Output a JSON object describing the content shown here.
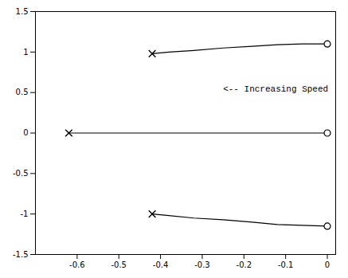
{
  "chart_data": {
    "type": "line",
    "color": "#000000",
    "marker": "x-o",
    "grid": false,
    "xlim": [
      -0.7,
      0.02
    ],
    "ylim": [
      -1.5,
      1.5
    ],
    "xticks": [
      -0.6,
      -0.5,
      -0.4,
      -0.3,
      -0.2,
      -0.1,
      0
    ],
    "yticks": [
      -1.5,
      -1,
      -0.5,
      0,
      0.5,
      1,
      1.5
    ],
    "series": [
      {
        "x": [
          -0.42,
          -0.38,
          -0.32,
          -0.25,
          -0.18,
          -0.12,
          -0.06,
          0.0
        ],
        "values": [
          0.98,
          1.0,
          1.02,
          1.05,
          1.07,
          1.09,
          1.1,
          1.1
        ]
      },
      {
        "x": [
          -0.62,
          -0.5,
          -0.3,
          -0.1,
          0.0
        ],
        "values": [
          0.0,
          0.0,
          0.0,
          0.0,
          0.0
        ]
      },
      {
        "x": [
          -0.42,
          -0.38,
          -0.32,
          -0.25,
          -0.18,
          -0.12,
          -0.06,
          0.0
        ],
        "values": [
          -1.0,
          -1.02,
          -1.05,
          -1.07,
          -1.1,
          -1.13,
          -1.14,
          -1.15
        ]
      }
    ],
    "annotations": [
      {
        "text": "<-- Increasing Speed",
        "x": -0.25,
        "y": 0.55
      }
    ]
  }
}
